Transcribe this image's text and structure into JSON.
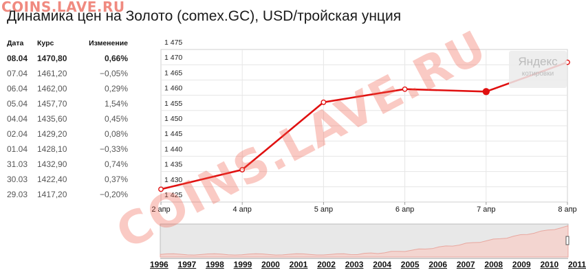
{
  "site_logo": "COINS.LAVE.RU",
  "watermark": "COINS.LAVE.RU",
  "title": "Динамика цен на Золото (comex.GC), USD/тройская унция",
  "table": {
    "headers": {
      "date": "Дата",
      "rate": "Курс",
      "change": "Изменение"
    },
    "rows": [
      {
        "date": "08.04",
        "rate": "1470,80",
        "change": "0,66%"
      },
      {
        "date": "07.04",
        "rate": "1461,20",
        "change": "−0,05%"
      },
      {
        "date": "06.04",
        "rate": "1462,00",
        "change": "0,29%"
      },
      {
        "date": "05.04",
        "rate": "1457,70",
        "change": "1,54%"
      },
      {
        "date": "04.04",
        "rate": "1435,60",
        "change": "0,45%"
      },
      {
        "date": "02.04",
        "rate": "1429,20",
        "change": "0,08%"
      },
      {
        "date": "01.04",
        "rate": "1428,10",
        "change": "−0,33%"
      },
      {
        "date": "31.03",
        "rate": "1432,90",
        "change": "0,74%"
      },
      {
        "date": "30.03",
        "rate": "1422,40",
        "change": "0,37%"
      },
      {
        "date": "29.03",
        "rate": "1417,20",
        "change": "−0,20%"
      }
    ]
  },
  "yandex_badge": {
    "logo": "Яндекс",
    "subtitle": "котировки"
  },
  "chart_data": {
    "type": "line",
    "x_labels": [
      "2 апр",
      "4 апр",
      "5 апр",
      "6 апр",
      "7 апр",
      "8 апр"
    ],
    "values": [
      1429.2,
      1435.6,
      1457.7,
      1462.0,
      1461.2,
      1470.8
    ],
    "selected_index": 4,
    "y_ticks": [
      "1 425",
      "1 430",
      "1 435",
      "1 440",
      "1 445",
      "1 450",
      "1 455",
      "1 460",
      "1 465",
      "1 470",
      "1 475"
    ],
    "ylim": [
      1425,
      1475
    ],
    "line_color": "#e01010",
    "grid": true
  },
  "overview": {
    "years": [
      "1996",
      "1997",
      "1998",
      "1999",
      "2000",
      "2001",
      "2002",
      "2003",
      "2004",
      "2005",
      "2006",
      "2007",
      "2008",
      "2009",
      "2010",
      "2011"
    ]
  }
}
